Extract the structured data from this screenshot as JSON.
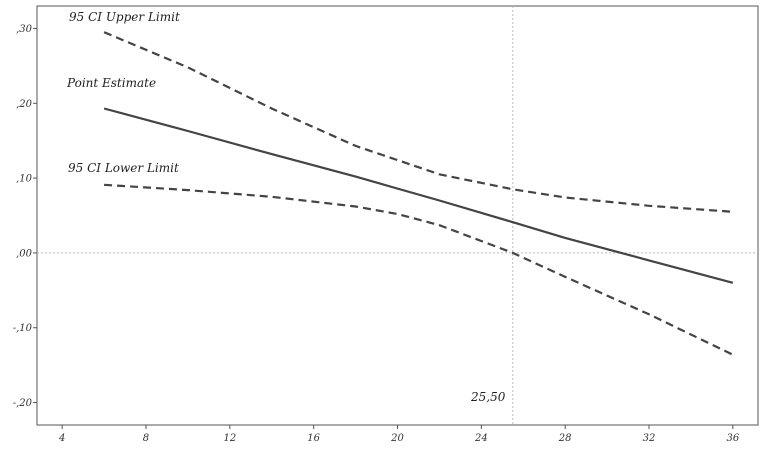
{
  "chart_data": {
    "type": "line",
    "xlim": [
      2.8,
      37.2
    ],
    "ylim": [
      -0.23,
      0.33
    ],
    "xticks": [
      4,
      8,
      12,
      16,
      20,
      24,
      28,
      32,
      36
    ],
    "xtick_labels": [
      "4",
      "8",
      "12",
      "16",
      "20",
      "24",
      "28",
      "32",
      "36"
    ],
    "yticks": [
      0.3,
      0.2,
      0.1,
      0.0,
      -0.1,
      -0.2
    ],
    "ytick_labels": [
      ",30",
      ",20",
      ",10",
      ",00",
      "-,10",
      "-,20"
    ],
    "grid": false,
    "reference_lines": {
      "horizontal_y": 0.0,
      "vertical_x": 25.5
    },
    "series": [
      {
        "name": "95 CI Upper Limit",
        "style": "dashed",
        "x": [
          6,
          10,
          14,
          18,
          22,
          25.5,
          28,
          32,
          36
        ],
        "y": [
          0.295,
          0.248,
          0.193,
          0.143,
          0.105,
          0.085,
          0.074,
          0.063,
          0.055
        ]
      },
      {
        "name": "Point Estimate",
        "style": "solid",
        "x": [
          6,
          10,
          14,
          18,
          22,
          25.5,
          28,
          32,
          36
        ],
        "y": [
          0.193,
          0.163,
          0.132,
          0.102,
          0.07,
          0.041,
          0.02,
          -0.01,
          -0.04
        ]
      },
      {
        "name": "95 CI Lower Limit",
        "style": "dashed",
        "x": [
          6,
          10,
          14,
          18,
          20,
          22,
          25.5,
          28,
          32,
          36
        ],
        "y": [
          0.091,
          0.084,
          0.075,
          0.062,
          0.052,
          0.037,
          0.0,
          -0.032,
          -0.082,
          -0.136
        ]
      }
    ],
    "annotations": {
      "upper_label": "95 CI Upper Limit",
      "point_label": "Point Estimate",
      "lower_label": "95 CI Lower Limit",
      "crossing_label": "25,50"
    },
    "colors": {
      "line": "#444444",
      "frame": "#555555",
      "reference": "#bbbbbb"
    }
  }
}
